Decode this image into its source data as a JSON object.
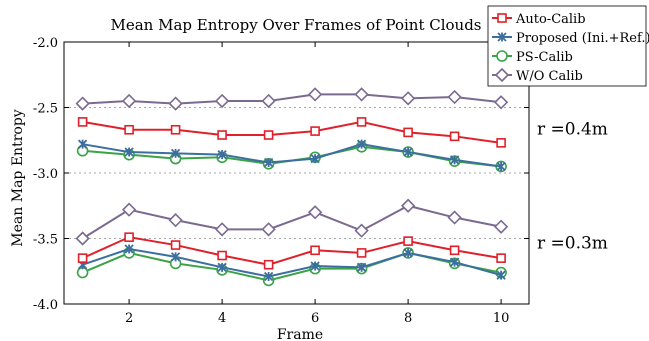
{
  "chart_data": {
    "type": "line",
    "title": "Mean Map Entropy Over Frames of Point Clouds",
    "xlabel": "Frame",
    "ylabel": "Mean Map Entropy",
    "xlim": [
      0.6,
      10.6
    ],
    "ylim": [
      -4.0,
      -2.0
    ],
    "xticks": [
      2,
      4,
      6,
      8,
      10
    ],
    "yticks": [
      -4.0,
      -3.5,
      -3.0,
      -2.5,
      -2.0
    ],
    "ytick_labels": [
      "-4.0",
      "-3.5",
      "-3.0",
      "-2.5",
      "-2.0"
    ],
    "grid": "y-dashed",
    "legend_position": "top-right",
    "x": [
      1,
      2,
      3,
      4,
      5,
      6,
      7,
      8,
      9,
      10
    ],
    "series": [
      {
        "name": "Auto-Calib",
        "color": "#e0202a",
        "marker": "square",
        "group": "r04",
        "values": [
          -2.61,
          -2.67,
          -2.67,
          -2.71,
          -2.71,
          -2.68,
          -2.61,
          -2.69,
          -2.72,
          -2.77
        ]
      },
      {
        "name": "Proposed (Ini.+Ref.)",
        "color": "#3d6ea0",
        "marker": "x-star",
        "group": "r04",
        "values": [
          -2.78,
          -2.84,
          -2.85,
          -2.86,
          -2.92,
          -2.89,
          -2.78,
          -2.84,
          -2.9,
          -2.95
        ]
      },
      {
        "name": "PS-Calib",
        "color": "#3aa347",
        "marker": "circle",
        "group": "r04",
        "values": [
          -2.83,
          -2.86,
          -2.89,
          -2.88,
          -2.93,
          -2.88,
          -2.8,
          -2.84,
          -2.91,
          -2.95
        ]
      },
      {
        "name": "W/O Calib",
        "color": "#7b6a90",
        "marker": "diamond",
        "group": "r04",
        "values": [
          -2.47,
          -2.45,
          -2.47,
          -2.45,
          -2.45,
          -2.4,
          -2.4,
          -2.43,
          -2.42,
          -2.46
        ]
      },
      {
        "name": "Auto-Calib",
        "color": "#e0202a",
        "marker": "square",
        "group": "r03",
        "values": [
          -3.65,
          -3.49,
          -3.55,
          -3.63,
          -3.7,
          -3.59,
          -3.61,
          -3.52,
          -3.59,
          -3.65
        ]
      },
      {
        "name": "Proposed (Ini.+Ref.)",
        "color": "#3d6ea0",
        "marker": "x-star",
        "group": "r03",
        "values": [
          -3.7,
          -3.58,
          -3.64,
          -3.72,
          -3.79,
          -3.71,
          -3.72,
          -3.61,
          -3.68,
          -3.78
        ]
      },
      {
        "name": "PS-Calib",
        "color": "#3aa347",
        "marker": "circle",
        "group": "r03",
        "values": [
          -3.76,
          -3.61,
          -3.69,
          -3.74,
          -3.82,
          -3.73,
          -3.73,
          -3.61,
          -3.69,
          -3.76
        ]
      },
      {
        "name": "W/O Calib",
        "color": "#7b6a90",
        "marker": "diamond",
        "group": "r03",
        "values": [
          -3.5,
          -3.28,
          -3.36,
          -3.43,
          -3.43,
          -3.3,
          -3.44,
          -3.25,
          -3.34,
          -3.41
        ]
      }
    ],
    "legend": [
      {
        "label": "Auto-Calib",
        "color": "#e0202a",
        "marker": "square"
      },
      {
        "label": "Proposed (Ini.+Ref.)",
        "color": "#3d6ea0",
        "marker": "x-star"
      },
      {
        "label": "PS-Calib",
        "color": "#3aa347",
        "marker": "circle"
      },
      {
        "label": "W/O Calib",
        "color": "#7b6a90",
        "marker": "diamond"
      }
    ],
    "annotations": [
      {
        "text": "r =0.4m",
        "group": "r04"
      },
      {
        "text": "r =0.3m",
        "group": "r03"
      }
    ]
  }
}
